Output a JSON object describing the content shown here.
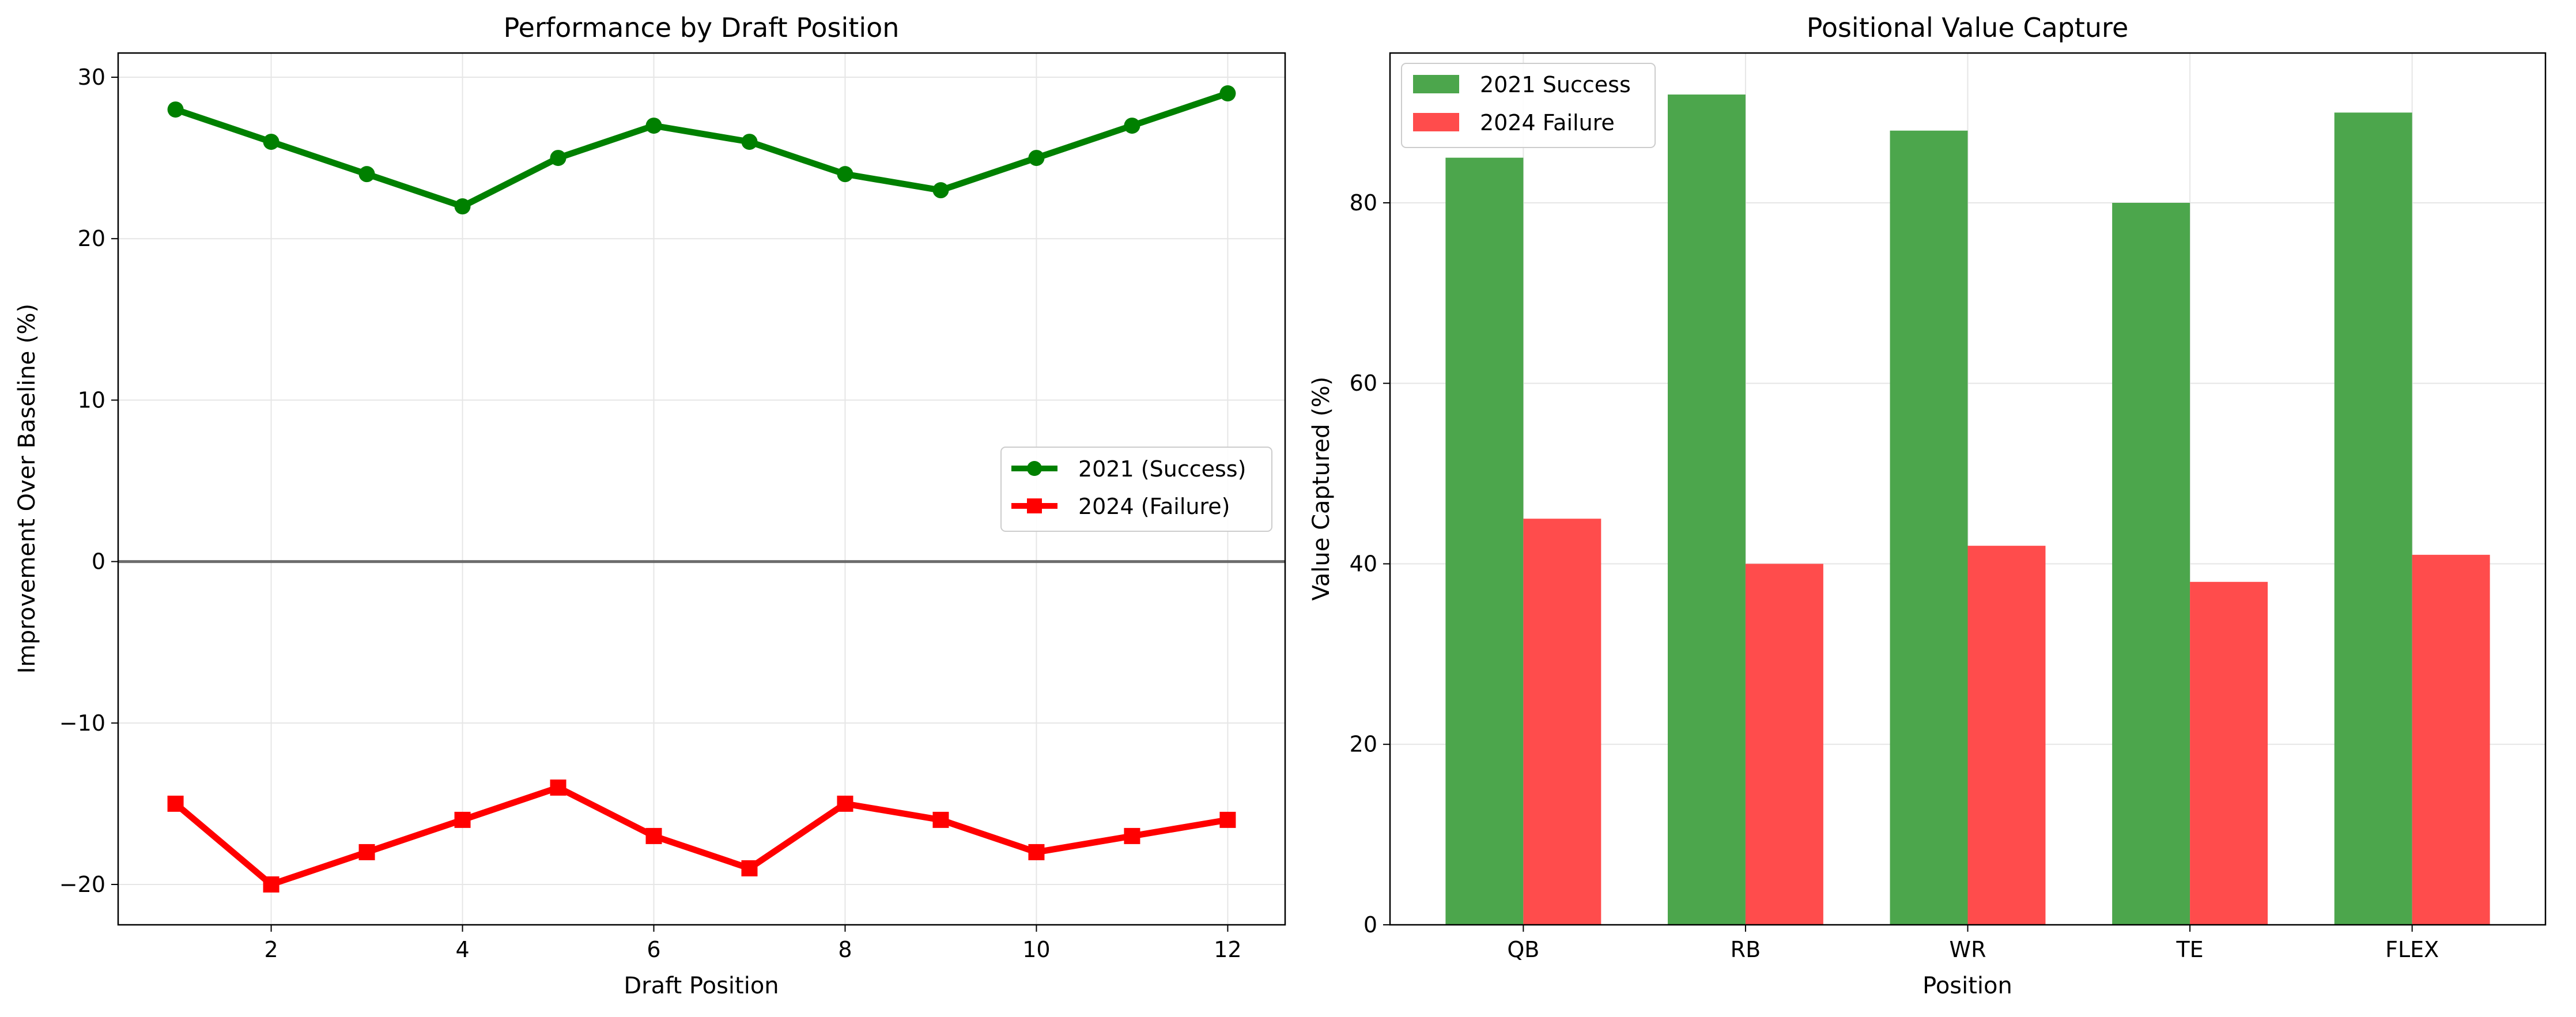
{
  "chart_data": [
    {
      "type": "line",
      "title": "Performance by Draft Position",
      "xlabel": "Draft Position",
      "ylabel": "Improvement Over Baseline (%)",
      "xlim": [
        0.4,
        12.6
      ],
      "ylim": [
        -22.5,
        31.5
      ],
      "xticks": [
        2,
        4,
        6,
        8,
        10,
        12
      ],
      "yticks": [
        -20,
        -10,
        0,
        10,
        20,
        30
      ],
      "ytick_labels": [
        "−20",
        "−10",
        "0",
        "10",
        "20",
        "30"
      ],
      "grid": true,
      "reference_line": 0,
      "legend_position": "center-right",
      "x": [
        1,
        2,
        3,
        4,
        5,
        6,
        7,
        8,
        9,
        10,
        11,
        12
      ],
      "series": [
        {
          "name": "2021 (Success)",
          "color": "#008000",
          "marker": "circle",
          "values": [
            28,
            26,
            24,
            22,
            25,
            27,
            26,
            24,
            23,
            25,
            27,
            29
          ]
        },
        {
          "name": "2024 (Failure)",
          "color": "#ff0000",
          "marker": "square",
          "values": [
            -15,
            -20,
            -18,
            -16,
            -14,
            -17,
            -19,
            -15,
            -16,
            -18,
            -17,
            -16
          ]
        }
      ]
    },
    {
      "type": "bar",
      "title": "Positional Value Capture",
      "xlabel": "Position",
      "ylabel": "Value Captured (%)",
      "ylim": [
        0,
        96.6
      ],
      "yticks": [
        0,
        20,
        40,
        60,
        80
      ],
      "grid": true,
      "legend_position": "top-left",
      "categories": [
        "QB",
        "RB",
        "WR",
        "TE",
        "FLEX"
      ],
      "series": [
        {
          "name": "2021 Success",
          "color": "#4ca64c",
          "values": [
            85,
            92,
            88,
            80,
            90
          ]
        },
        {
          "name": "2024 Failure",
          "color": "#ff4c4c",
          "values": [
            45,
            40,
            42,
            38,
            41
          ]
        }
      ]
    }
  ]
}
